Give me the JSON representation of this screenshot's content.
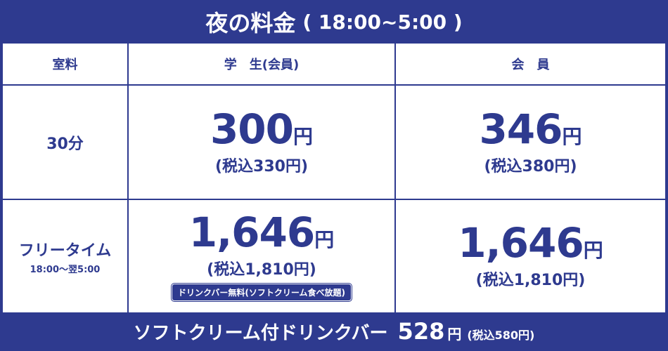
{
  "header": {
    "title": "夜の料金",
    "time": "( 18:00~5:00 )"
  },
  "table": {
    "columns": [
      "室料",
      "学　生(会員)",
      "会　員"
    ],
    "rows": [
      {
        "label": "30分",
        "cells": [
          {
            "price": "300",
            "unit": "円",
            "tax": "(税込330円)"
          },
          {
            "price": "346",
            "unit": "円",
            "tax": "(税込380円)"
          }
        ]
      },
      {
        "label": "フリータイム",
        "sub": "18:00～翌5:00",
        "cells": [
          {
            "price": "1,646",
            "unit": "円",
            "tax": "(税込1,810円)",
            "note": "ドリンクバー無料(ソフトクリーム食べ放題)"
          },
          {
            "price": "1,646",
            "unit": "円",
            "tax": "(税込1,810円)"
          }
        ]
      }
    ]
  },
  "footer": {
    "text": "ソフトクリーム付ドリンクバー",
    "price": "528",
    "unit": "円",
    "tax": "(税込580円)"
  }
}
